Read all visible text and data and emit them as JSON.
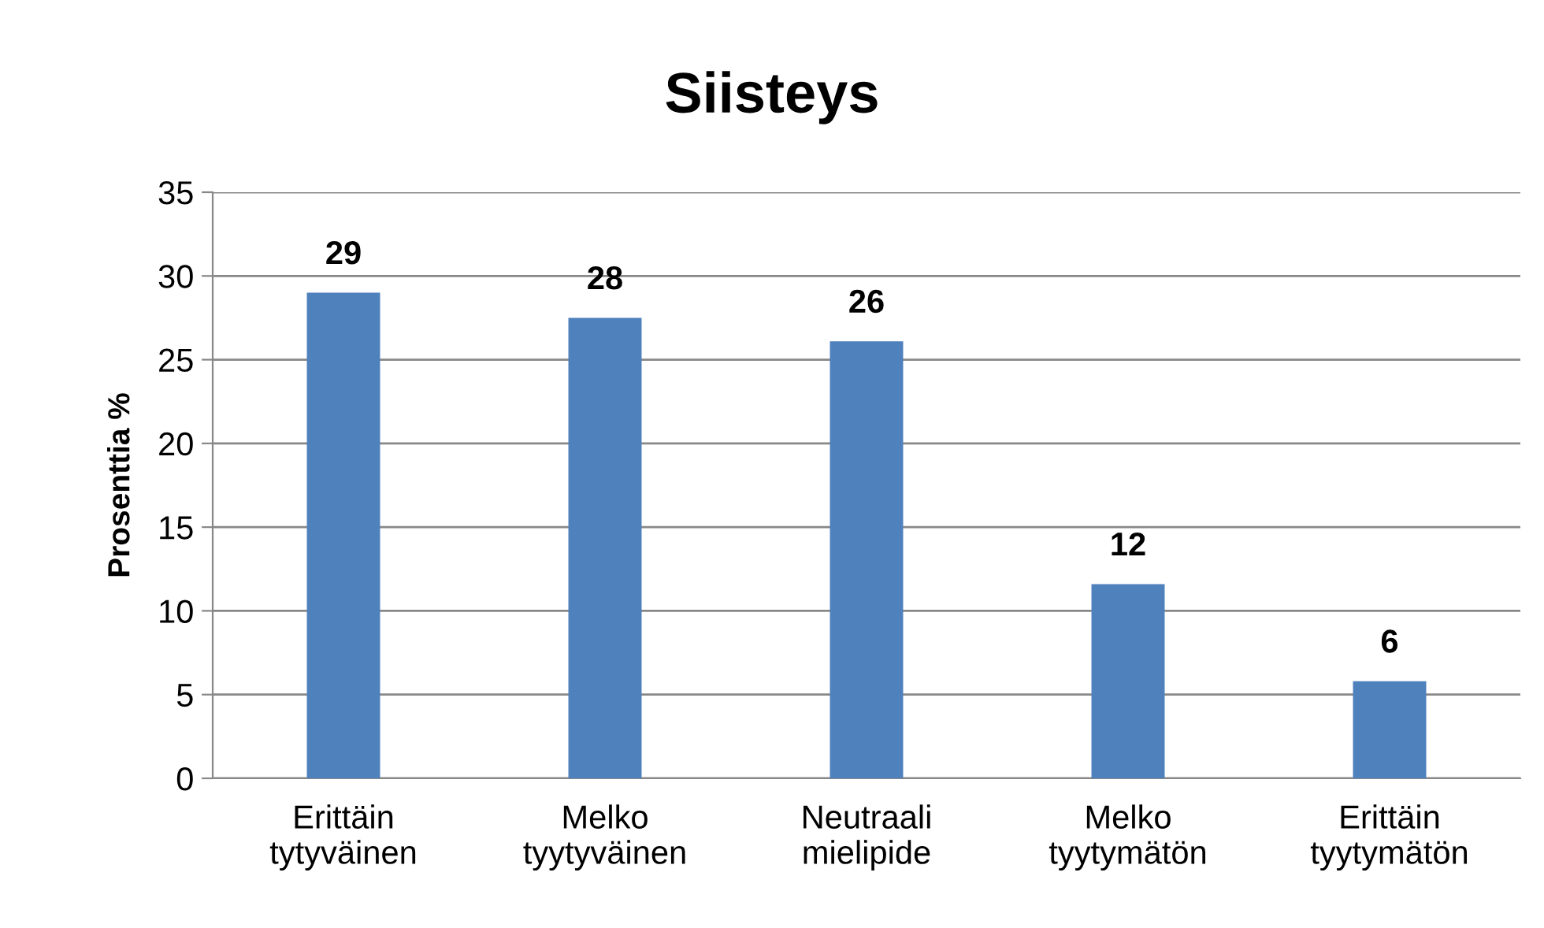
{
  "chart_data": {
    "type": "bar",
    "title": "Siisteys",
    "ylabel": "Prosenttia %",
    "categories": [
      "Erittäin\ntytyväinen",
      "Melko\ntyytyväinen",
      "Neutraali\nmielipide",
      "Melko\ntyytymätön",
      "Erittäin\ntyytymätön"
    ],
    "values": [
      29.0,
      27.5,
      26.1,
      11.6,
      5.8
    ],
    "value_labels": [
      "29",
      "28",
      "26",
      "12",
      "6"
    ],
    "color": "#4f81bd",
    "ylim": [
      0,
      35
    ],
    "yticks": [
      0,
      5,
      10,
      15,
      20,
      25,
      30,
      35
    ],
    "grid": "y"
  }
}
